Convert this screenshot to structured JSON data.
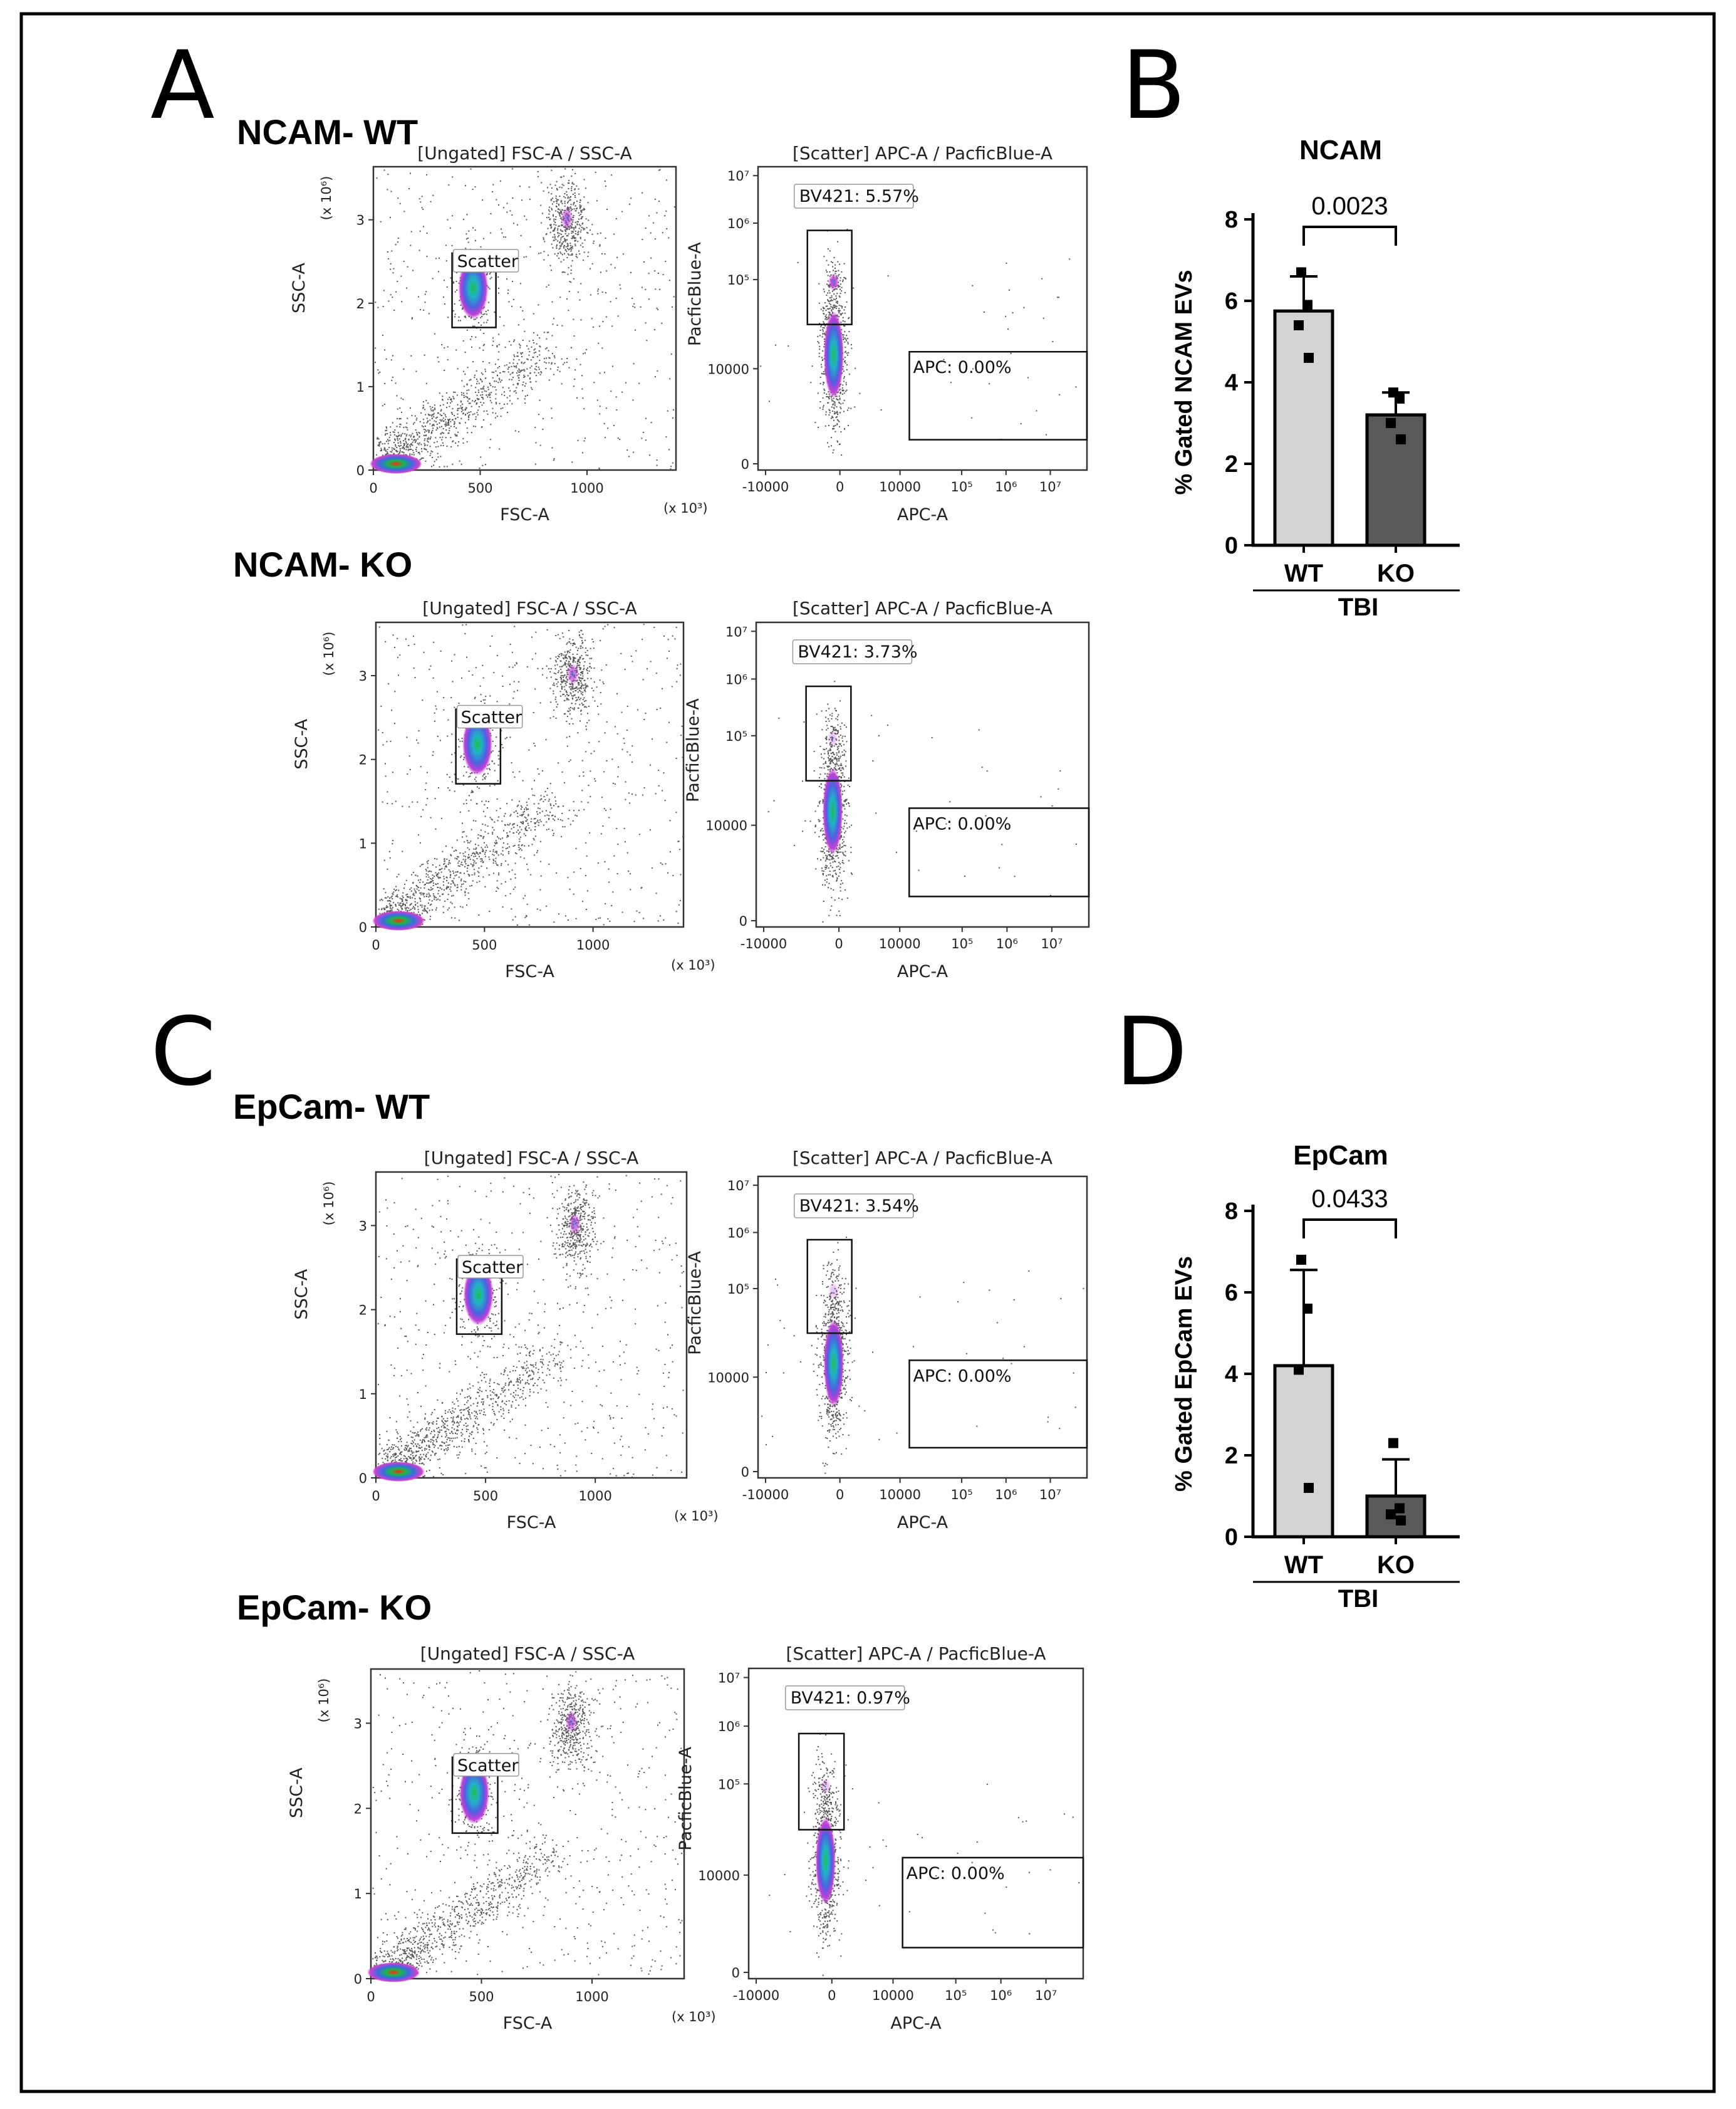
{
  "figure": {
    "panel_letters": [
      "A",
      "B",
      "C",
      "D"
    ],
    "flow_common": {
      "scatter_title": "[Ungated] FSC-A / SSC-A",
      "fluor_title": "[Scatter] APC-A / PacficBlue-A",
      "fsc_xlabel": "FSC-A",
      "ssc_ylabel": "SSC-A",
      "apc_xlabel": "APC-A",
      "pb_ylabel": "PacficBlue-A",
      "multiplier_x": "(x 10³)",
      "multiplier_y": "(x 10⁶)",
      "fsc_ticks": [
        "0",
        "500",
        "1000"
      ],
      "ssc_ticks": [
        "0",
        "1",
        "2",
        "3"
      ],
      "apc_ticks": [
        "-10000",
        "0",
        "10000",
        "10⁵",
        "10⁶",
        "10⁷"
      ],
      "pb_ticks": [
        "0",
        "10000",
        "10⁵",
        "10⁶",
        "10⁷"
      ],
      "scatter_gate_label": "Scatter",
      "apc_gate_label": "APC: 0.00%"
    },
    "flow_rows": [
      {
        "title": "NCAM- WT",
        "bv421_label": "BV421: 5.57%",
        "bv421_percent": 5.57,
        "apc_percent": 0.0
      },
      {
        "title": "NCAM- KO",
        "bv421_label": "BV421: 3.73%",
        "bv421_percent": 3.73,
        "apc_percent": 0.0
      },
      {
        "title": "EpCam- WT",
        "bv421_label": "BV421: 3.54%",
        "bv421_percent": 3.54,
        "apc_percent": 0.0
      },
      {
        "title": "EpCam- KO",
        "bv421_label": "BV421: 0.97%",
        "bv421_percent": 0.97,
        "apc_percent": 0.0
      }
    ]
  },
  "chart_data": [
    {
      "type": "bar",
      "panel": "B",
      "title": "NCAM",
      "ylabel": "% Gated NCAM EVs",
      "xlabel": "TBI",
      "categories": [
        "WT",
        "KO"
      ],
      "values": [
        5.75,
        3.2
      ],
      "errors": [
        0.85,
        0.55
      ],
      "points": [
        [
          6.7,
          5.9,
          5.4,
          4.6
        ],
        [
          3.75,
          3.6,
          3.0,
          2.6
        ]
      ],
      "ylim": [
        0,
        8
      ],
      "yticks": [
        "0",
        "2",
        "4",
        "6",
        "8"
      ],
      "pvalue": "0.0023",
      "colors": [
        "#d3d3d3",
        "#5a5a5a"
      ]
    },
    {
      "type": "bar",
      "panel": "D",
      "title": "EpCam",
      "ylabel": "% Gated  EpCam  EVs",
      "xlabel": "TBI",
      "categories": [
        "WT",
        "KO"
      ],
      "values": [
        4.2,
        1.0
      ],
      "errors": [
        2.35,
        0.9
      ],
      "points": [
        [
          6.8,
          5.6,
          4.1,
          1.2
        ],
        [
          2.3,
          0.7,
          0.55,
          0.4
        ]
      ],
      "ylim": [
        0,
        8
      ],
      "yticks": [
        "0",
        "2",
        "4",
        "6",
        "8"
      ],
      "pvalue": "0.0433",
      "colors": [
        "#d3d3d3",
        "#5a5a5a"
      ]
    }
  ]
}
